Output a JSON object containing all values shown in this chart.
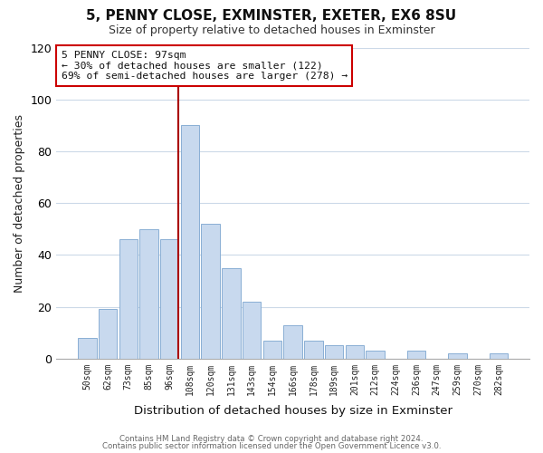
{
  "title": "5, PENNY CLOSE, EXMINSTER, EXETER, EX6 8SU",
  "subtitle": "Size of property relative to detached houses in Exminster",
  "xlabel": "Distribution of detached houses by size in Exminster",
  "ylabel": "Number of detached properties",
  "bar_color": "#c8d9ee",
  "bar_edge_color": "#8aafd4",
  "bins": [
    "50sqm",
    "62sqm",
    "73sqm",
    "85sqm",
    "96sqm",
    "108sqm",
    "120sqm",
    "131sqm",
    "143sqm",
    "154sqm",
    "166sqm",
    "178sqm",
    "189sqm",
    "201sqm",
    "212sqm",
    "224sqm",
    "236sqm",
    "247sqm",
    "259sqm",
    "270sqm",
    "282sqm"
  ],
  "values": [
    8,
    19,
    46,
    50,
    46,
    90,
    52,
    35,
    22,
    7,
    13,
    7,
    5,
    5,
    3,
    0,
    3,
    0,
    2,
    0,
    2
  ],
  "ylim": [
    0,
    120
  ],
  "yticks": [
    0,
    20,
    40,
    60,
    80,
    100,
    120
  ],
  "annotation_text_line1": "5 PENNY CLOSE: 97sqm",
  "annotation_text_line2": "← 30% of detached houses are smaller (122)",
  "annotation_text_line3": "69% of semi-detached houses are larger (278) →",
  "marker_bin_index": 4,
  "background_color": "#ffffff",
  "grid_color": "#ccd9e8",
  "footer_line1": "Contains HM Land Registry data © Crown copyright and database right 2024.",
  "footer_line2": "Contains public sector information licensed under the Open Government Licence v3.0."
}
